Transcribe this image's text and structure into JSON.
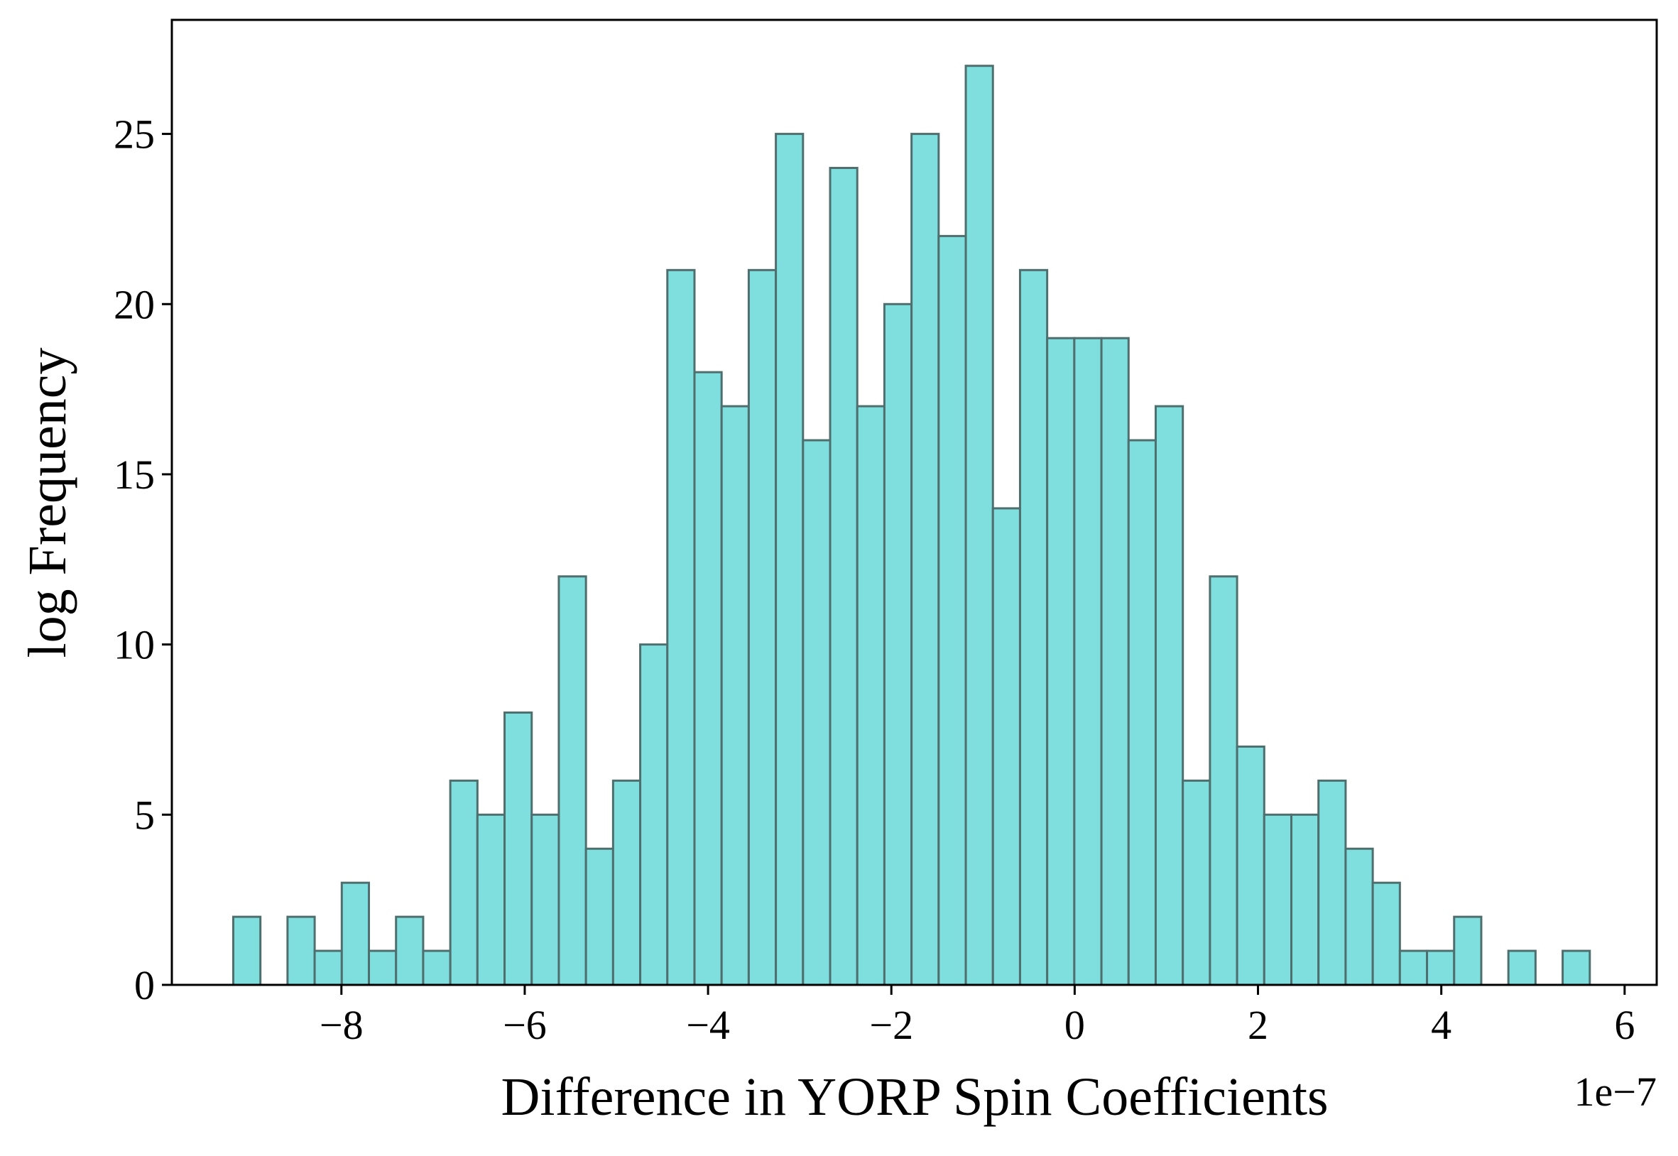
{
  "chart_data": {
    "type": "bar",
    "subtype": "histogram",
    "title": "",
    "xlabel": "Difference in YORP Spin Coefficients",
    "ylabel": "log Frequency",
    "x_offset_label": "1e−7",
    "x_scale_factor": 1e-07,
    "bin_width": 0.296,
    "bin_start": -9.18,
    "values": [
      2,
      0,
      2,
      1,
      3,
      1,
      2,
      1,
      6,
      5,
      8,
      5,
      12,
      4,
      6,
      10,
      21,
      18,
      17,
      21,
      25,
      16,
      24,
      17,
      20,
      25,
      22,
      27,
      14,
      21,
      19,
      19,
      19,
      16,
      17,
      6,
      12,
      7,
      5,
      5,
      6,
      4,
      3,
      1,
      1,
      2,
      0,
      1,
      0,
      1
    ],
    "xlim": [
      -9.85,
      6.35
    ],
    "ylim": [
      0,
      28.35
    ],
    "xticks": [
      -8,
      -6,
      -4,
      -2,
      0,
      2,
      4,
      6
    ],
    "xtick_labels": [
      "−8",
      "−6",
      "−4",
      "−2",
      "0",
      "2",
      "4",
      "6"
    ],
    "yticks": [
      0,
      5,
      10,
      15,
      20,
      25
    ],
    "ytick_labels": [
      "0",
      "5",
      "10",
      "15",
      "20",
      "25"
    ],
    "bar_color": "#7fdfdf",
    "edge_color": "#4f6f6f",
    "grid": false,
    "legend": false
  }
}
